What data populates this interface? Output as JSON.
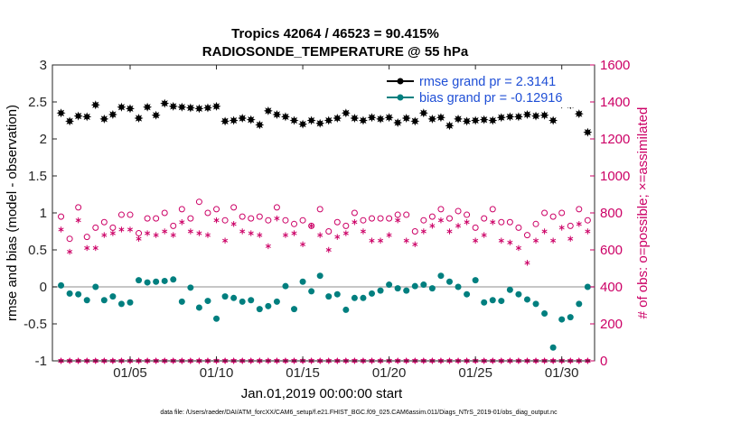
{
  "chart_data": {
    "type": "scatter",
    "title_line1": "Tropics 42064 / 46523 = 90.415%",
    "title_line2": "RADIOSONDE_TEMPERATURE @ 55 hPa",
    "xlabel": "Jan.01,2019 00:00:00 start",
    "ylabel_left": "rmse and bias (model - observation)",
    "ylabel_right": "# of obs: o=possible; ×=assimilated",
    "xlim": [
      0.5,
      31.9
    ],
    "ylim_left": [
      -1,
      3
    ],
    "ylim_right": [
      0,
      1600
    ],
    "xticks": [
      5,
      10,
      15,
      20,
      25,
      30
    ],
    "xtick_labels": [
      "01/05",
      "01/10",
      "01/15",
      "01/20",
      "01/25",
      "01/30"
    ],
    "yticks_left": [
      -1,
      -0.5,
      0,
      0.5,
      1,
      1.5,
      2,
      2.5,
      3
    ],
    "ytick_labels_left": [
      "-1",
      "-0.5",
      "0",
      "0.5",
      "1",
      "1.5",
      "2",
      "2.5",
      "3"
    ],
    "yticks_right": [
      0,
      200,
      400,
      600,
      800,
      1000,
      1200,
      1400,
      1600
    ],
    "ytick_labels_right": [
      "0",
      "200",
      "400",
      "600",
      "800",
      "1000",
      "1200",
      "1400",
      "1600"
    ],
    "colors": {
      "rmse": "#000000",
      "bias": "#007f7f",
      "obs": "#cc0066",
      "zero_line": "#b3b3b3",
      "legend_text": "#1f4fd6"
    },
    "legend": [
      {
        "name": "rmse",
        "label": "rmse grand pr = 2.3141"
      },
      {
        "name": "bias",
        "label": "bias grand pr = -0.12916"
      }
    ],
    "footnote": "data file: /Users/raeder/DAI/ATM_forcXX/CAM6_setup/f.e21.FHIST_BGC.f09_025.CAM6assim.011/Diags_NTrS_2019-01/obs_diag_output.nc",
    "x": [
      1.0,
      1.5,
      2.0,
      2.5,
      3.0,
      3.5,
      4.0,
      4.5,
      5.0,
      5.5,
      6.0,
      6.5,
      7.0,
      7.5,
      8.0,
      8.5,
      9.0,
      9.5,
      10.0,
      10.5,
      11.0,
      11.5,
      12.0,
      12.5,
      13.0,
      13.5,
      14.0,
      14.5,
      15.0,
      15.5,
      16.0,
      16.5,
      17.0,
      17.5,
      18.0,
      18.5,
      19.0,
      19.5,
      20.0,
      20.5,
      21.0,
      21.5,
      22.0,
      22.5,
      23.0,
      23.5,
      24.0,
      24.5,
      25.0,
      25.5,
      26.0,
      26.5,
      27.0,
      27.5,
      28.0,
      28.5,
      29.0,
      29.5,
      30.0,
      30.5,
      31.0,
      31.5
    ],
    "series": [
      {
        "name": "rmse",
        "axis": "left",
        "marker": "star",
        "values": [
          2.35,
          2.24,
          2.31,
          2.3,
          2.46,
          2.27,
          2.33,
          2.43,
          2.41,
          2.28,
          2.43,
          2.32,
          2.48,
          2.44,
          2.43,
          2.42,
          2.41,
          2.42,
          2.44,
          2.24,
          2.25,
          2.28,
          2.26,
          2.19,
          2.38,
          2.33,
          2.3,
          2.25,
          2.2,
          2.25,
          2.21,
          2.25,
          2.28,
          2.35,
          2.28,
          2.25,
          2.29,
          2.27,
          2.29,
          2.22,
          2.28,
          2.24,
          2.35,
          2.27,
          2.29,
          2.18,
          2.27,
          2.24,
          2.25,
          2.26,
          2.25,
          2.29,
          2.3,
          2.3,
          2.33,
          2.31,
          2.32,
          2.25,
          2.47,
          2.46,
          2.34,
          2.09
        ]
      },
      {
        "name": "bias",
        "axis": "left",
        "marker": "filled-circle",
        "values": [
          0.02,
          -0.09,
          -0.1,
          -0.18,
          0.0,
          -0.18,
          -0.13,
          -0.23,
          -0.21,
          0.09,
          0.06,
          0.07,
          0.08,
          0.1,
          -0.2,
          -0.01,
          -0.28,
          -0.19,
          -0.43,
          -0.13,
          -0.15,
          -0.2,
          -0.18,
          -0.3,
          -0.26,
          -0.2,
          0.01,
          -0.3,
          0.07,
          -0.06,
          0.15,
          -0.13,
          -0.1,
          -0.31,
          -0.15,
          -0.15,
          -0.09,
          -0.05,
          0.03,
          -0.02,
          -0.05,
          0.01,
          0.03,
          -0.02,
          0.15,
          0.07,
          0.0,
          -0.1,
          0.09,
          -0.21,
          -0.18,
          -0.19,
          -0.04,
          -0.1,
          -0.17,
          -0.23,
          -0.36,
          -0.82,
          -0.44,
          -0.41,
          -0.23,
          0.0
        ]
      },
      {
        "name": "possible",
        "axis": "right",
        "marker": "open-circle",
        "values": [
          780,
          660,
          830,
          670,
          720,
          750,
          720,
          790,
          790,
          690,
          770,
          770,
          800,
          730,
          820,
          770,
          860,
          800,
          820,
          760,
          830,
          780,
          770,
          780,
          760,
          830,
          760,
          740,
          760,
          730,
          820,
          700,
          750,
          730,
          800,
          760,
          770,
          770,
          770,
          790,
          790,
          700,
          760,
          780,
          820,
          770,
          810,
          790,
          720,
          770,
          820,
          750,
          750,
          720,
          680,
          740,
          800,
          780,
          800,
          730,
          820,
          760
        ]
      },
      {
        "name": "assimilated",
        "axis": "right",
        "marker": "asterisk",
        "values": [
          710,
          590,
          760,
          610,
          610,
          680,
          690,
          710,
          710,
          660,
          690,
          680,
          700,
          680,
          750,
          700,
          690,
          680,
          760,
          650,
          740,
          700,
          690,
          680,
          620,
          770,
          680,
          690,
          630,
          730,
          680,
          600,
          670,
          690,
          750,
          700,
          650,
          650,
          680,
          760,
          650,
          630,
          700,
          730,
          760,
          700,
          730,
          750,
          650,
          680,
          750,
          650,
          640,
          610,
          530,
          650,
          700,
          650,
          720,
          660,
          740,
          700
        ]
      },
      {
        "name": "rejected-zero",
        "axis": "right",
        "marker": "star",
        "values": [
          0,
          0,
          0,
          0,
          0,
          0,
          0,
          0,
          0,
          0,
          0,
          0,
          0,
          0,
          0,
          0,
          0,
          0,
          0,
          0,
          0,
          0,
          0,
          0,
          0,
          0,
          0,
          0,
          0,
          0,
          0,
          0,
          0,
          0,
          0,
          0,
          0,
          0,
          0,
          0,
          0,
          0,
          0,
          0,
          0,
          0,
          0,
          0,
          0,
          0,
          0,
          0,
          0,
          0,
          0,
          0,
          0,
          0,
          0,
          0,
          0,
          0
        ]
      }
    ]
  }
}
